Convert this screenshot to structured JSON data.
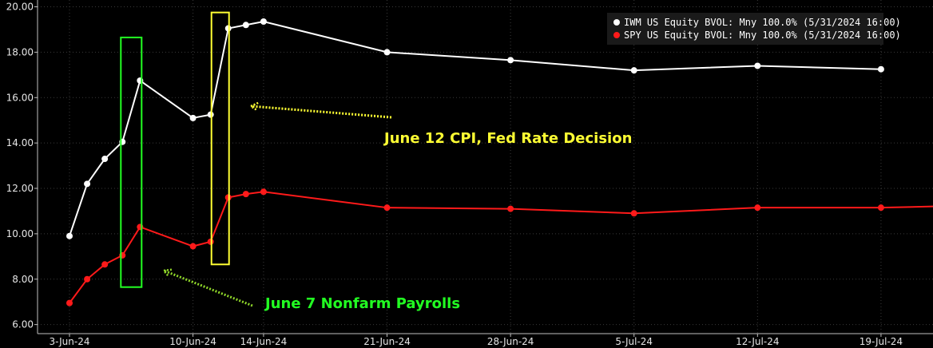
{
  "chart_data": {
    "type": "line",
    "title": "",
    "xlabel": "",
    "ylabel": "",
    "ylim": [
      5.6,
      20.3
    ],
    "xlim": [
      "2024-06-03",
      "2024-07-20"
    ],
    "grid": true,
    "legend_position": "top-right",
    "y_ticks": [
      "6.00",
      "8.00",
      "10.00",
      "12.00",
      "14.00",
      "16.00",
      "18.00",
      "20.00"
    ],
    "x_ticks": [
      {
        "date": "2024-06-03",
        "label": "3-Jun-24"
      },
      {
        "date": "2024-06-10",
        "label": "10-Jun-24"
      },
      {
        "date": "2024-06-14",
        "label": "14-Jun-24"
      },
      {
        "date": "2024-06-21",
        "label": "21-Jun-24"
      },
      {
        "date": "2024-06-28",
        "label": "28-Jun-24"
      },
      {
        "date": "2024-07-05",
        "label": "5-Jul-24"
      },
      {
        "date": "2024-07-12",
        "label": "12-Jul-24"
      },
      {
        "date": "2024-07-19",
        "label": "19-Jul-24"
      }
    ],
    "series": [
      {
        "name": "IWM US Equity BVOL: Mny 100.0% (5/31/2024 16:00)",
        "color": "#ffffff",
        "points": [
          {
            "x": "2024-06-03",
            "y": 9.9
          },
          {
            "x": "2024-06-04",
            "y": 12.2
          },
          {
            "x": "2024-06-05",
            "y": 13.3
          },
          {
            "x": "2024-06-06",
            "y": 14.05
          },
          {
            "x": "2024-06-07",
            "y": 16.75
          },
          {
            "x": "2024-06-10",
            "y": 15.1
          },
          {
            "x": "2024-06-11",
            "y": 15.25
          },
          {
            "x": "2024-06-12",
            "y": 19.05
          },
          {
            "x": "2024-06-13",
            "y": 19.2
          },
          {
            "x": "2024-06-14",
            "y": 19.35
          },
          {
            "x": "2024-06-21",
            "y": 18.0
          },
          {
            "x": "2024-06-28",
            "y": 17.65
          },
          {
            "x": "2024-07-05",
            "y": 17.2
          },
          {
            "x": "2024-07-12",
            "y": 17.4
          },
          {
            "x": "2024-07-19",
            "y": 17.25
          }
        ]
      },
      {
        "name": "SPY US Equity BVOL: Mny 100.0% (5/31/2024 16:00)",
        "color": "#ff1a1a",
        "points": [
          {
            "x": "2024-06-03",
            "y": 6.95
          },
          {
            "x": "2024-06-04",
            "y": 8.0
          },
          {
            "x": "2024-06-05",
            "y": 8.65
          },
          {
            "x": "2024-06-06",
            "y": 9.05
          },
          {
            "x": "2024-06-07",
            "y": 10.3
          },
          {
            "x": "2024-06-10",
            "y": 9.45
          },
          {
            "x": "2024-06-11",
            "y": 9.65
          },
          {
            "x": "2024-06-12",
            "y": 11.6
          },
          {
            "x": "2024-06-13",
            "y": 11.75
          },
          {
            "x": "2024-06-14",
            "y": 11.85
          },
          {
            "x": "2024-06-21",
            "y": 11.15
          },
          {
            "x": "2024-06-28",
            "y": 11.1
          },
          {
            "x": "2024-07-05",
            "y": 10.9
          },
          {
            "x": "2024-07-12",
            "y": 11.15
          },
          {
            "x": "2024-07-19",
            "y": 11.15
          }
        ]
      }
    ],
    "annotations": [
      {
        "text": "June 12 CPI, Fed Rate Decision",
        "color": "#ffff33",
        "box_x": [
          "2024-06-11",
          "2024-06-12"
        ],
        "box_y": [
          8.65,
          19.75
        ]
      },
      {
        "text": "June 7 Nonfarm Payrolls",
        "color": "#22ff22",
        "box_x": [
          "2024-06-06",
          "2024-06-07"
        ],
        "box_y": [
          7.65,
          18.65
        ]
      }
    ]
  },
  "colors": {
    "background": "#000000",
    "grid": "#3a3a3a",
    "axis": "#bfbfbf",
    "legend_background": "#1a1a1a",
    "yellow_arrow": "#ffff33",
    "green_arrow": "#8fd62a"
  }
}
